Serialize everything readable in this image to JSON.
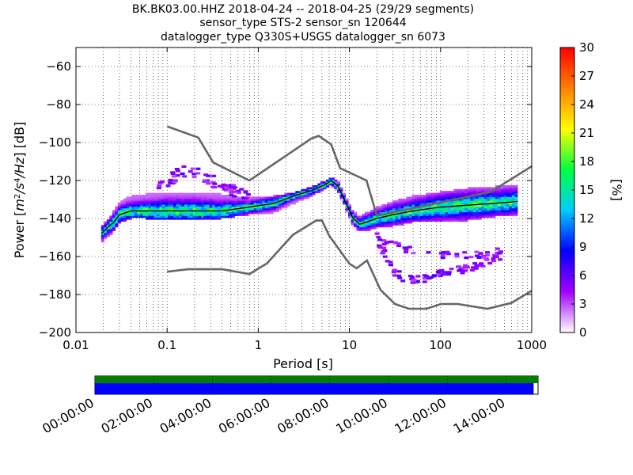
{
  "title_lines": [
    "BK.BK03.00.HHZ   2018-04-24 -- 2018-04-25  (29/29 segments)",
    "sensor_type STS-2 sensor_sn 120644",
    "datalogger_type Q330S+USGS datalogger_sn 6073"
  ],
  "chart_data": {
    "type": "heatmap",
    "xlabel": "Period [s]",
    "ylabel": "Power [m²/s⁴/Hz] [dB]",
    "ylabel_parts": {
      "prefix": "Power [",
      "m": "m",
      "sup2": "2",
      "s": "/s",
      "sup4": "4",
      "hz": "/Hz",
      "suffix": "] [dB]"
    },
    "x_scale": "log",
    "xlim": [
      0.01,
      1000
    ],
    "ylim": [
      -200,
      -50
    ],
    "x_ticks": [
      0.01,
      0.1,
      1,
      10,
      100,
      1000
    ],
    "x_tick_labels": [
      "0.01",
      "0.1",
      "1",
      "10",
      "100",
      "1000"
    ],
    "y_ticks": [
      -200,
      -180,
      -160,
      -140,
      -120,
      -100,
      -80,
      -60
    ],
    "y_tick_labels": [
      "−200",
      "−180",
      "−160",
      "−140",
      "−120",
      "−100",
      "−80",
      "−60"
    ],
    "grid": "dotted",
    "colorbar": {
      "label": "[%]",
      "ticks": [
        0,
        3,
        6,
        9,
        12,
        15,
        18,
        21,
        24,
        27,
        30
      ],
      "tick_labels": [
        "0",
        "3",
        "6",
        "9",
        "12",
        "15",
        "18",
        "21",
        "24",
        "27",
        "30"
      ],
      "range": [
        0,
        30
      ],
      "colormap": [
        "#ffffff",
        "#a000ff",
        "#0000ff",
        "#00ccff",
        "#00ff40",
        "#ffff00",
        "#ff8000",
        "#ff0000"
      ]
    },
    "noise_model_high": {
      "name": "NHNM",
      "periods": [
        0.1,
        0.22,
        0.32,
        0.8,
        3.8,
        4.6,
        6.3,
        7.9,
        15.4,
        20,
        354.8,
        1000
      ],
      "db": [
        -91.5,
        -97.4,
        -110.5,
        -120.0,
        -98.0,
        -96.5,
        -101.0,
        -113.5,
        -120.0,
        -138.5,
        -126.0,
        -112.5
      ]
    },
    "noise_model_low": {
      "name": "NLNM",
      "periods": [
        0.1,
        0.17,
        0.4,
        0.8,
        1.24,
        2.4,
        4.3,
        5.0,
        6.0,
        10.0,
        12.0,
        15.6,
        21.9,
        31.6,
        45.0,
        70.0,
        101.0,
        154.0,
        328.0,
        600.0,
        1000
      ],
      "db": [
        -168.0,
        -166.7,
        -166.7,
        -169.2,
        -163.7,
        -148.6,
        -141.1,
        -141.1,
        -149.0,
        -163.8,
        -166.2,
        -162.1,
        -177.5,
        -185.0,
        -187.5,
        -187.5,
        -185.0,
        -185.0,
        -187.5,
        -184.4,
        -178.0
      ]
    },
    "psd_band": {
      "periods": [
        0.019,
        0.022,
        0.026,
        0.03,
        0.04,
        0.06,
        0.1,
        0.2,
        0.4,
        0.8,
        1.5,
        2.5,
        4.0,
        5.5,
        6.3,
        7.5,
        9.0,
        11.0,
        13.0,
        15.0,
        20.0,
        30.0,
        50.0,
        100.0,
        200.0,
        400.0,
        700.0
      ],
      "low_db": [
        -152,
        -149,
        -146,
        -141,
        -139,
        -139,
        -140,
        -140,
        -139,
        -137,
        -136,
        -131,
        -127,
        -123,
        -121,
        -125,
        -133,
        -143,
        -146,
        -146,
        -144,
        -143,
        -141,
        -141,
        -140,
        -138,
        -137
      ],
      "mode_db": [
        -148,
        -145,
        -142,
        -138,
        -136,
        -136,
        -136,
        -136,
        -136,
        -134,
        -132,
        -128,
        -125,
        -122,
        -120,
        -123,
        -131,
        -140,
        -143,
        -142,
        -140,
        -138,
        -136,
        -134,
        -133,
        -132,
        -131
      ],
      "high_db": [
        -145,
        -142,
        -137,
        -132,
        -129,
        -128,
        -127,
        -127,
        -128,
        -130,
        -129,
        -127,
        -124,
        -121,
        -119,
        -121,
        -129,
        -137,
        -140,
        -138,
        -135,
        -132,
        -129,
        -127,
        -125,
        -124,
        -123
      ]
    },
    "psd_outliers": {
      "upper_periods": [
        0.08,
        0.12,
        0.15,
        0.2,
        0.3,
        0.5,
        0.8
      ],
      "upper_db": [
        -125,
        -118,
        -115,
        -116,
        -120,
        -125,
        -129
      ],
      "lower_periods": [
        20,
        25,
        30,
        40,
        50,
        70,
        100,
        150,
        200,
        300,
        450
      ],
      "lower_db": [
        -150,
        -160,
        -168,
        -172,
        -173,
        -172,
        -170,
        -168,
        -167,
        -163,
        -160
      ],
      "mid_periods": [
        20,
        30,
        50,
        70,
        100,
        150,
        300,
        500
      ],
      "mid_db": [
        -150,
        -154,
        -157,
        -158,
        -159,
        -160,
        -159,
        -157
      ]
    }
  },
  "timeline": {
    "tick_labels": [
      "00:00:00",
      "02:00:00",
      "04:00:00",
      "06:00:00",
      "08:00:00",
      "10:00:00",
      "12:00:00",
      "14:00:00"
    ],
    "coverage_fraction": 0.99,
    "colors": {
      "data": "#0000ff",
      "gaps_ok": "#008000"
    }
  }
}
